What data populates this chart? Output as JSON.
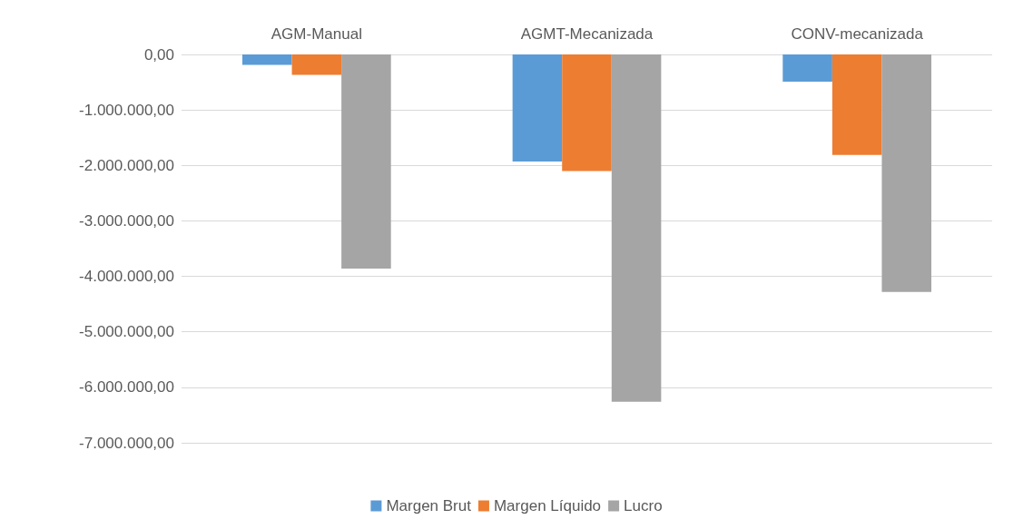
{
  "chart_data": {
    "type": "bar",
    "categories": [
      "AGM-Manual",
      "AGMT-Mecanizada",
      "CONV-mecanizada"
    ],
    "series": [
      {
        "name": "Margen Brut",
        "color": "#5b9bd5",
        "values": [
          -190000,
          -1930000,
          -490000
        ]
      },
      {
        "name": "Margen Líquido",
        "color": "#ed7d31",
        "values": [
          -370000,
          -2100000,
          -1810000
        ]
      },
      {
        "name": "Lucro",
        "color": "#a5a5a5",
        "values": [
          -3860000,
          -6260000,
          -4280000
        ]
      }
    ],
    "ylim": [
      -7000000,
      0
    ],
    "yticks": [
      {
        "value": -7000000,
        "label": "-7.000.000,00"
      },
      {
        "value": -6000000,
        "label": "-6.000.000,00"
      },
      {
        "value": -5000000,
        "label": "-5.000.000,00"
      },
      {
        "value": -4000000,
        "label": "-4.000.000,00"
      },
      {
        "value": -3000000,
        "label": "-3.000.000,00"
      },
      {
        "value": -2000000,
        "label": "-2.000.000,00"
      },
      {
        "value": -1000000,
        "label": "-1.000.000,00"
      },
      {
        "value": 0,
        "label": "0,00"
      }
    ],
    "grid": true,
    "legend": "bottom"
  }
}
